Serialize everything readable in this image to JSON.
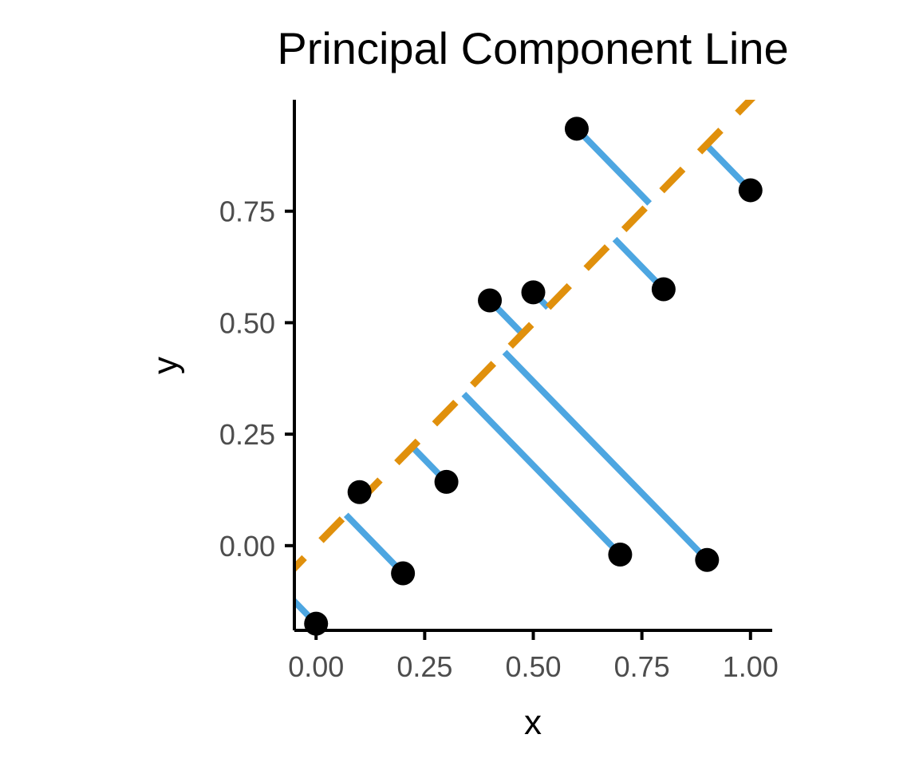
{
  "chart_data": {
    "type": "scatter",
    "title": "Principal Component Line",
    "xlabel": "x",
    "ylabel": "y",
    "xlim": [
      -0.05,
      1.05
    ],
    "ylim": [
      -0.19,
      1.0
    ],
    "xticks": [
      0.0,
      0.25,
      0.5,
      0.75,
      1.0
    ],
    "yticks": [
      0.0,
      0.25,
      0.5,
      0.75
    ],
    "xtick_labels": [
      "0.00",
      "0.25",
      "0.50",
      "0.75",
      "1.00"
    ],
    "ytick_labels": [
      "0.00",
      "0.25",
      "0.50",
      "0.75"
    ],
    "grid": false,
    "legend": false,
    "points": {
      "x": [
        0.0,
        0.1,
        0.2,
        0.3,
        0.4,
        0.5,
        0.6,
        0.7,
        0.8,
        0.9,
        1.0
      ],
      "y": [
        -0.175,
        0.12,
        -0.062,
        0.143,
        0.55,
        0.568,
        0.935,
        -0.02,
        0.575,
        -0.032,
        0.797
      ]
    },
    "principal_component_line": {
      "style": "dashed",
      "intercept": 0.0,
      "slope": 1.0
    },
    "colors": {
      "points": "#000000",
      "projections": "#4da6e1",
      "pc_line": "#e0900c",
      "axis": "#000000",
      "tick_label": "#4d4d4d",
      "text": "#000000"
    }
  }
}
